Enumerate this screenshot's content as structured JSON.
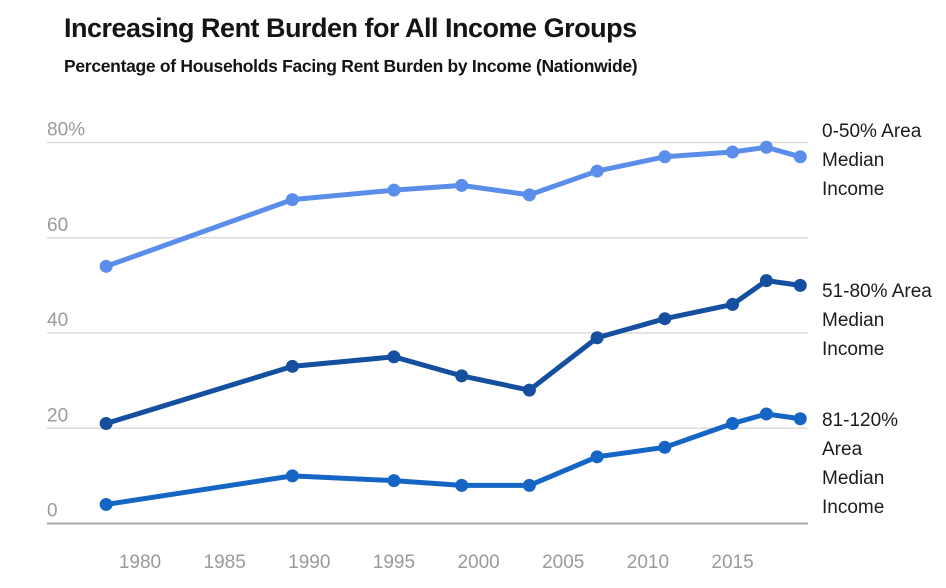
{
  "header": {
    "title": "Increasing Rent Burden for All Income Groups",
    "subtitle": "Percentage of Households Facing Rent Burden by Income (Nationwide)"
  },
  "colors": {
    "title_text": "#141414",
    "tick_text": "#9a9a9a",
    "gridline": "#dcdcdc",
    "axis_baseline": "#a8a8a8",
    "series_low_income": "#5b8eea",
    "series_mid_income": "#14509f",
    "series_upper_income": "#1566c4"
  },
  "chart_data": {
    "type": "line",
    "title": "Increasing Rent Burden for All Income Groups",
    "subtitle": "Percentage of Households Facing Rent Burden by Income (Nationwide)",
    "xlabel": "",
    "ylabel": "",
    "grid": "horizontal",
    "legend_position": "right",
    "ylim": [
      0,
      80
    ],
    "x": [
      1978,
      1989,
      1995,
      1999,
      2003,
      2007,
      2011,
      2015,
      2017,
      2019
    ],
    "x_tick_years": [
      1980,
      1985,
      1990,
      1995,
      2000,
      2005,
      2010,
      2015
    ],
    "x_tick_labels": [
      "1980",
      "1985",
      "1990",
      "1995",
      "2000",
      "2005",
      "2010",
      "2015"
    ],
    "y_ticks": [
      0,
      20,
      40,
      60,
      80
    ],
    "y_tick_labels": [
      "0",
      "20",
      "40",
      "60",
      "80%"
    ],
    "series": [
      {
        "name": "0-50% Area Median Income",
        "color": "#5b8eea",
        "values": [
          54,
          68,
          70,
          71,
          69,
          74,
          77,
          78,
          79,
          77
        ],
        "label_lines": [
          "0-50% Area",
          "Median",
          "Income"
        ]
      },
      {
        "name": "51-80% Area Median Income",
        "color": "#14509f",
        "values": [
          21,
          33,
          35,
          31,
          28,
          39,
          43,
          46,
          51,
          50
        ],
        "label_lines": [
          "51-80% Area",
          "Median",
          "Income"
        ]
      },
      {
        "name": "81-120% Area Median Income",
        "color": "#1566c4",
        "values": [
          4,
          10,
          9,
          8,
          8,
          14,
          16,
          21,
          23,
          22
        ],
        "label_lines": [
          "81-120%",
          "Area",
          "Median",
          "Income"
        ]
      }
    ]
  }
}
